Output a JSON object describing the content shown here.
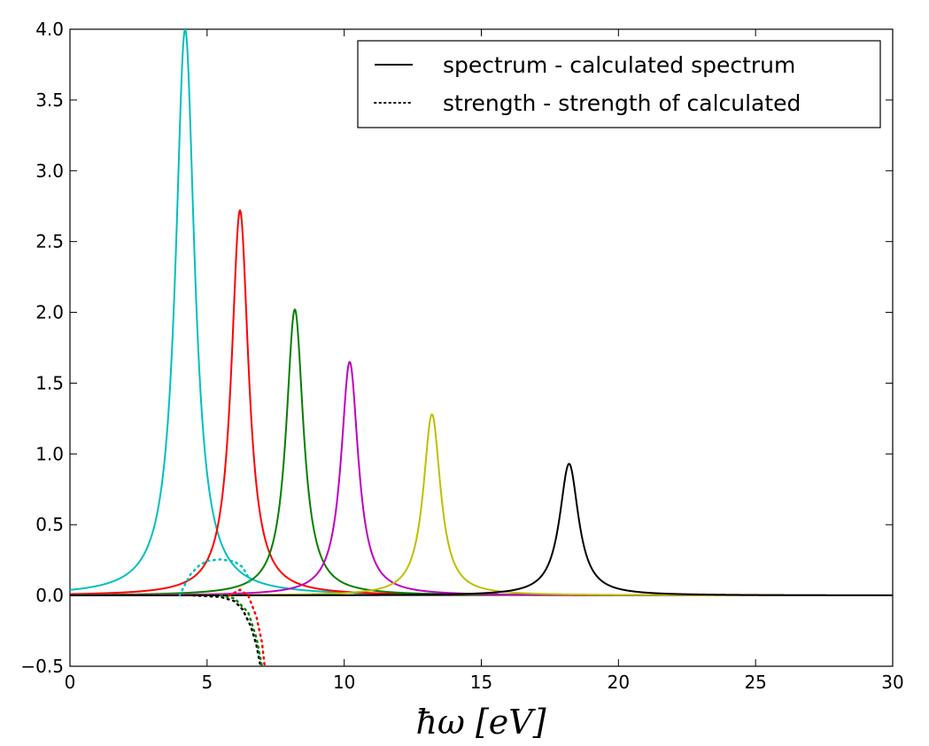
{
  "chart_data": {
    "type": "line",
    "xlabel": "ħω  [eV]",
    "ylabel": "",
    "xlim": [
      0,
      30
    ],
    "ylim": [
      -0.5,
      4.0
    ],
    "xticks": [
      0,
      5,
      10,
      15,
      20,
      25,
      30
    ],
    "xtick_labels": [
      "0",
      "5",
      "10",
      "15",
      "20",
      "25",
      "30"
    ],
    "yticks": [
      -0.5,
      0.0,
      0.5,
      1.0,
      1.5,
      2.0,
      2.5,
      3.0,
      3.5,
      4.0
    ],
    "ytick_labels": [
      "−0.5",
      "0.0",
      "0.5",
      "1.0",
      "1.5",
      "2.0",
      "2.5",
      "3.0",
      "3.5",
      "4.0"
    ],
    "grid": false,
    "legend_position": "top-right",
    "legend": [
      {
        "label": "spectrum - calculated spectrum",
        "style": "solid",
        "color": "#000000"
      },
      {
        "label": "strength - strength of calculated",
        "style": "dotted",
        "color": "#000000"
      }
    ],
    "series": [
      {
        "color": "#00bfbf",
        "style": "solid",
        "peak_x": 4.2,
        "peak_y": 4.0,
        "width": 0.42
      },
      {
        "color": "#ff0000",
        "style": "solid",
        "peak_x": 6.2,
        "peak_y": 2.72,
        "width": 0.38
      },
      {
        "color": "#008000",
        "style": "solid",
        "peak_x": 8.2,
        "peak_y": 2.02,
        "width": 0.38
      },
      {
        "color": "#bf00bf",
        "style": "solid",
        "peak_x": 10.2,
        "peak_y": 1.65,
        "width": 0.38
      },
      {
        "color": "#bfbf00",
        "style": "solid",
        "peak_x": 13.2,
        "peak_y": 1.28,
        "width": 0.38
      },
      {
        "color": "#000000",
        "style": "solid",
        "peak_x": 18.2,
        "peak_y": 0.93,
        "width": 0.42
      },
      {
        "color": "#00bfbf",
        "style": "dotted",
        "points": [
          [
            4.0,
            0.0
          ],
          [
            4.2,
            0.08
          ],
          [
            4.4,
            0.15
          ],
          [
            4.7,
            0.21
          ],
          [
            5.0,
            0.245
          ],
          [
            5.5,
            0.255
          ],
          [
            6.0,
            0.24
          ],
          [
            6.3,
            0.2
          ],
          [
            6.5,
            0.13
          ],
          [
            6.6,
            0.07
          ]
        ]
      },
      {
        "color": "#000000",
        "style": "dotted",
        "points": [
          [
            4.5,
            0.0
          ],
          [
            5.5,
            -0.01
          ],
          [
            6.0,
            -0.04
          ],
          [
            6.3,
            -0.1
          ],
          [
            6.6,
            -0.22
          ],
          [
            6.8,
            -0.35
          ],
          [
            6.95,
            -0.5
          ]
        ]
      },
      {
        "color": "#008000",
        "style": "dotted",
        "points": [
          [
            5.5,
            0.0
          ],
          [
            6.0,
            -0.02
          ],
          [
            6.5,
            -0.12
          ],
          [
            6.8,
            -0.3
          ],
          [
            7.0,
            -0.5
          ]
        ]
      },
      {
        "color": "#ff0000",
        "style": "dotted",
        "points": [
          [
            5.8,
            0.0
          ],
          [
            6.2,
            0.04
          ],
          [
            6.5,
            0.0
          ],
          [
            6.8,
            -0.15
          ],
          [
            7.0,
            -0.33
          ],
          [
            7.1,
            -0.5
          ]
        ]
      }
    ]
  }
}
